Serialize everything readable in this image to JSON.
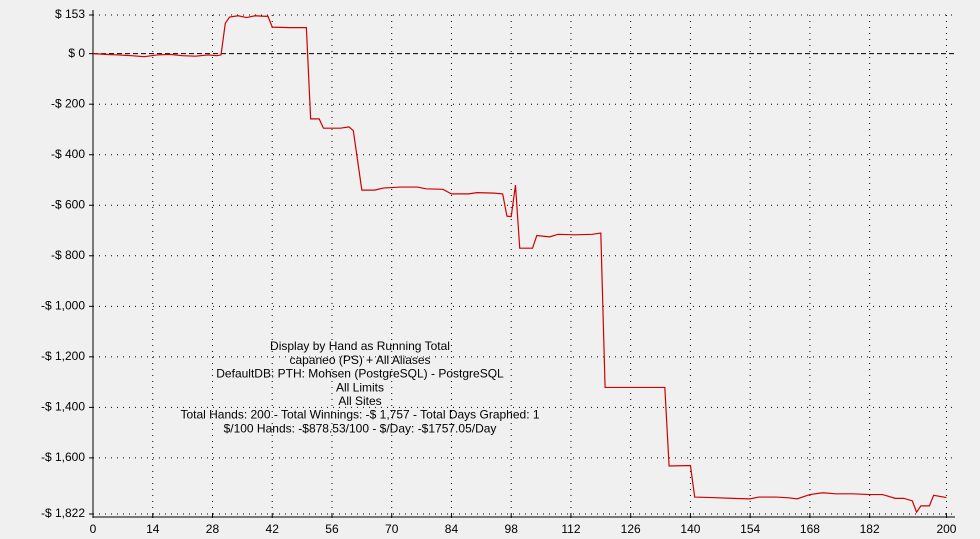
{
  "chart_data": {
    "type": "line",
    "annotations": [
      "Display by Hand as Running Total",
      "capaneo (PS) + All Aliases",
      "DefaultDB: PTH: Mohsen (PostgreSQL) - PostgreSQL",
      "All Limits",
      "All Sites",
      "Total Hands: 200 - Total Winnings: -$ 1,757 - Total Days Graphed: 1",
      "$/100 Hands: -$878.53/100 - $/Day: -$1757.05/Day"
    ],
    "x": [
      0,
      3,
      6,
      9,
      12,
      15,
      18,
      21,
      24,
      27,
      29,
      30,
      31,
      32,
      34,
      36,
      38,
      40,
      41,
      42,
      46,
      50,
      51,
      53,
      54,
      58,
      60,
      61,
      63,
      66,
      68,
      72,
      76,
      78,
      82,
      84,
      88,
      90,
      94,
      96,
      97,
      98,
      99,
      100,
      103,
      104,
      107,
      109,
      113,
      117,
      119,
      120,
      124,
      128,
      134,
      135,
      140,
      141,
      145,
      150,
      154,
      156,
      160,
      163,
      165,
      168,
      171,
      174,
      178,
      182,
      185,
      188,
      190,
      192,
      193,
      194,
      196,
      197,
      200
    ],
    "series": [
      {
        "color": "#d00000",
        "values": [
          0,
          -3,
          -5,
          -8,
          -12,
          -5,
          -3,
          -8,
          -10,
          -5,
          -8,
          -5,
          120,
          145,
          150,
          143,
          150,
          148,
          148,
          105,
          103,
          103,
          -258,
          -258,
          -295,
          -295,
          -290,
          -305,
          -540,
          -540,
          -532,
          -528,
          -528,
          -535,
          -537,
          -555,
          -555,
          -550,
          -552,
          -555,
          -643,
          -645,
          -520,
          -770,
          -770,
          -720,
          -725,
          -715,
          -717,
          -715,
          -710,
          -1321,
          -1321,
          -1321,
          -1321,
          -1632,
          -1630,
          -1755,
          -1757,
          -1760,
          -1762,
          -1755,
          -1755,
          -1758,
          -1762,
          -1745,
          -1738,
          -1742,
          -1742,
          -1745,
          -1745,
          -1760,
          -1760,
          -1770,
          -1815,
          -1790,
          -1790,
          -1748,
          -1757
        ]
      }
    ],
    "xlim": [
      0,
      202
    ],
    "xticks": [
      0,
      14,
      28,
      42,
      56,
      70,
      84,
      98,
      112,
      126,
      140,
      154,
      168,
      182,
      200
    ],
    "ylim": [
      -1822,
      153
    ],
    "yticks": [
      {
        "value": 153,
        "label": "$ 153"
      },
      {
        "value": 0,
        "label": "$ 0"
      },
      {
        "value": -200,
        "label": "-$ 200"
      },
      {
        "value": -400,
        "label": "-$ 400"
      },
      {
        "value": -600,
        "label": "-$ 600"
      },
      {
        "value": -800,
        "label": "-$ 800"
      },
      {
        "value": -1000,
        "label": "-$ 1,000"
      },
      {
        "value": -1200,
        "label": "-$ 1,200"
      },
      {
        "value": -1400,
        "label": "-$ 1,400"
      },
      {
        "value": -1600,
        "label": "-$ 1,600"
      },
      {
        "value": -1822,
        "label": "-$ 1,822"
      }
    ],
    "grid": true
  }
}
